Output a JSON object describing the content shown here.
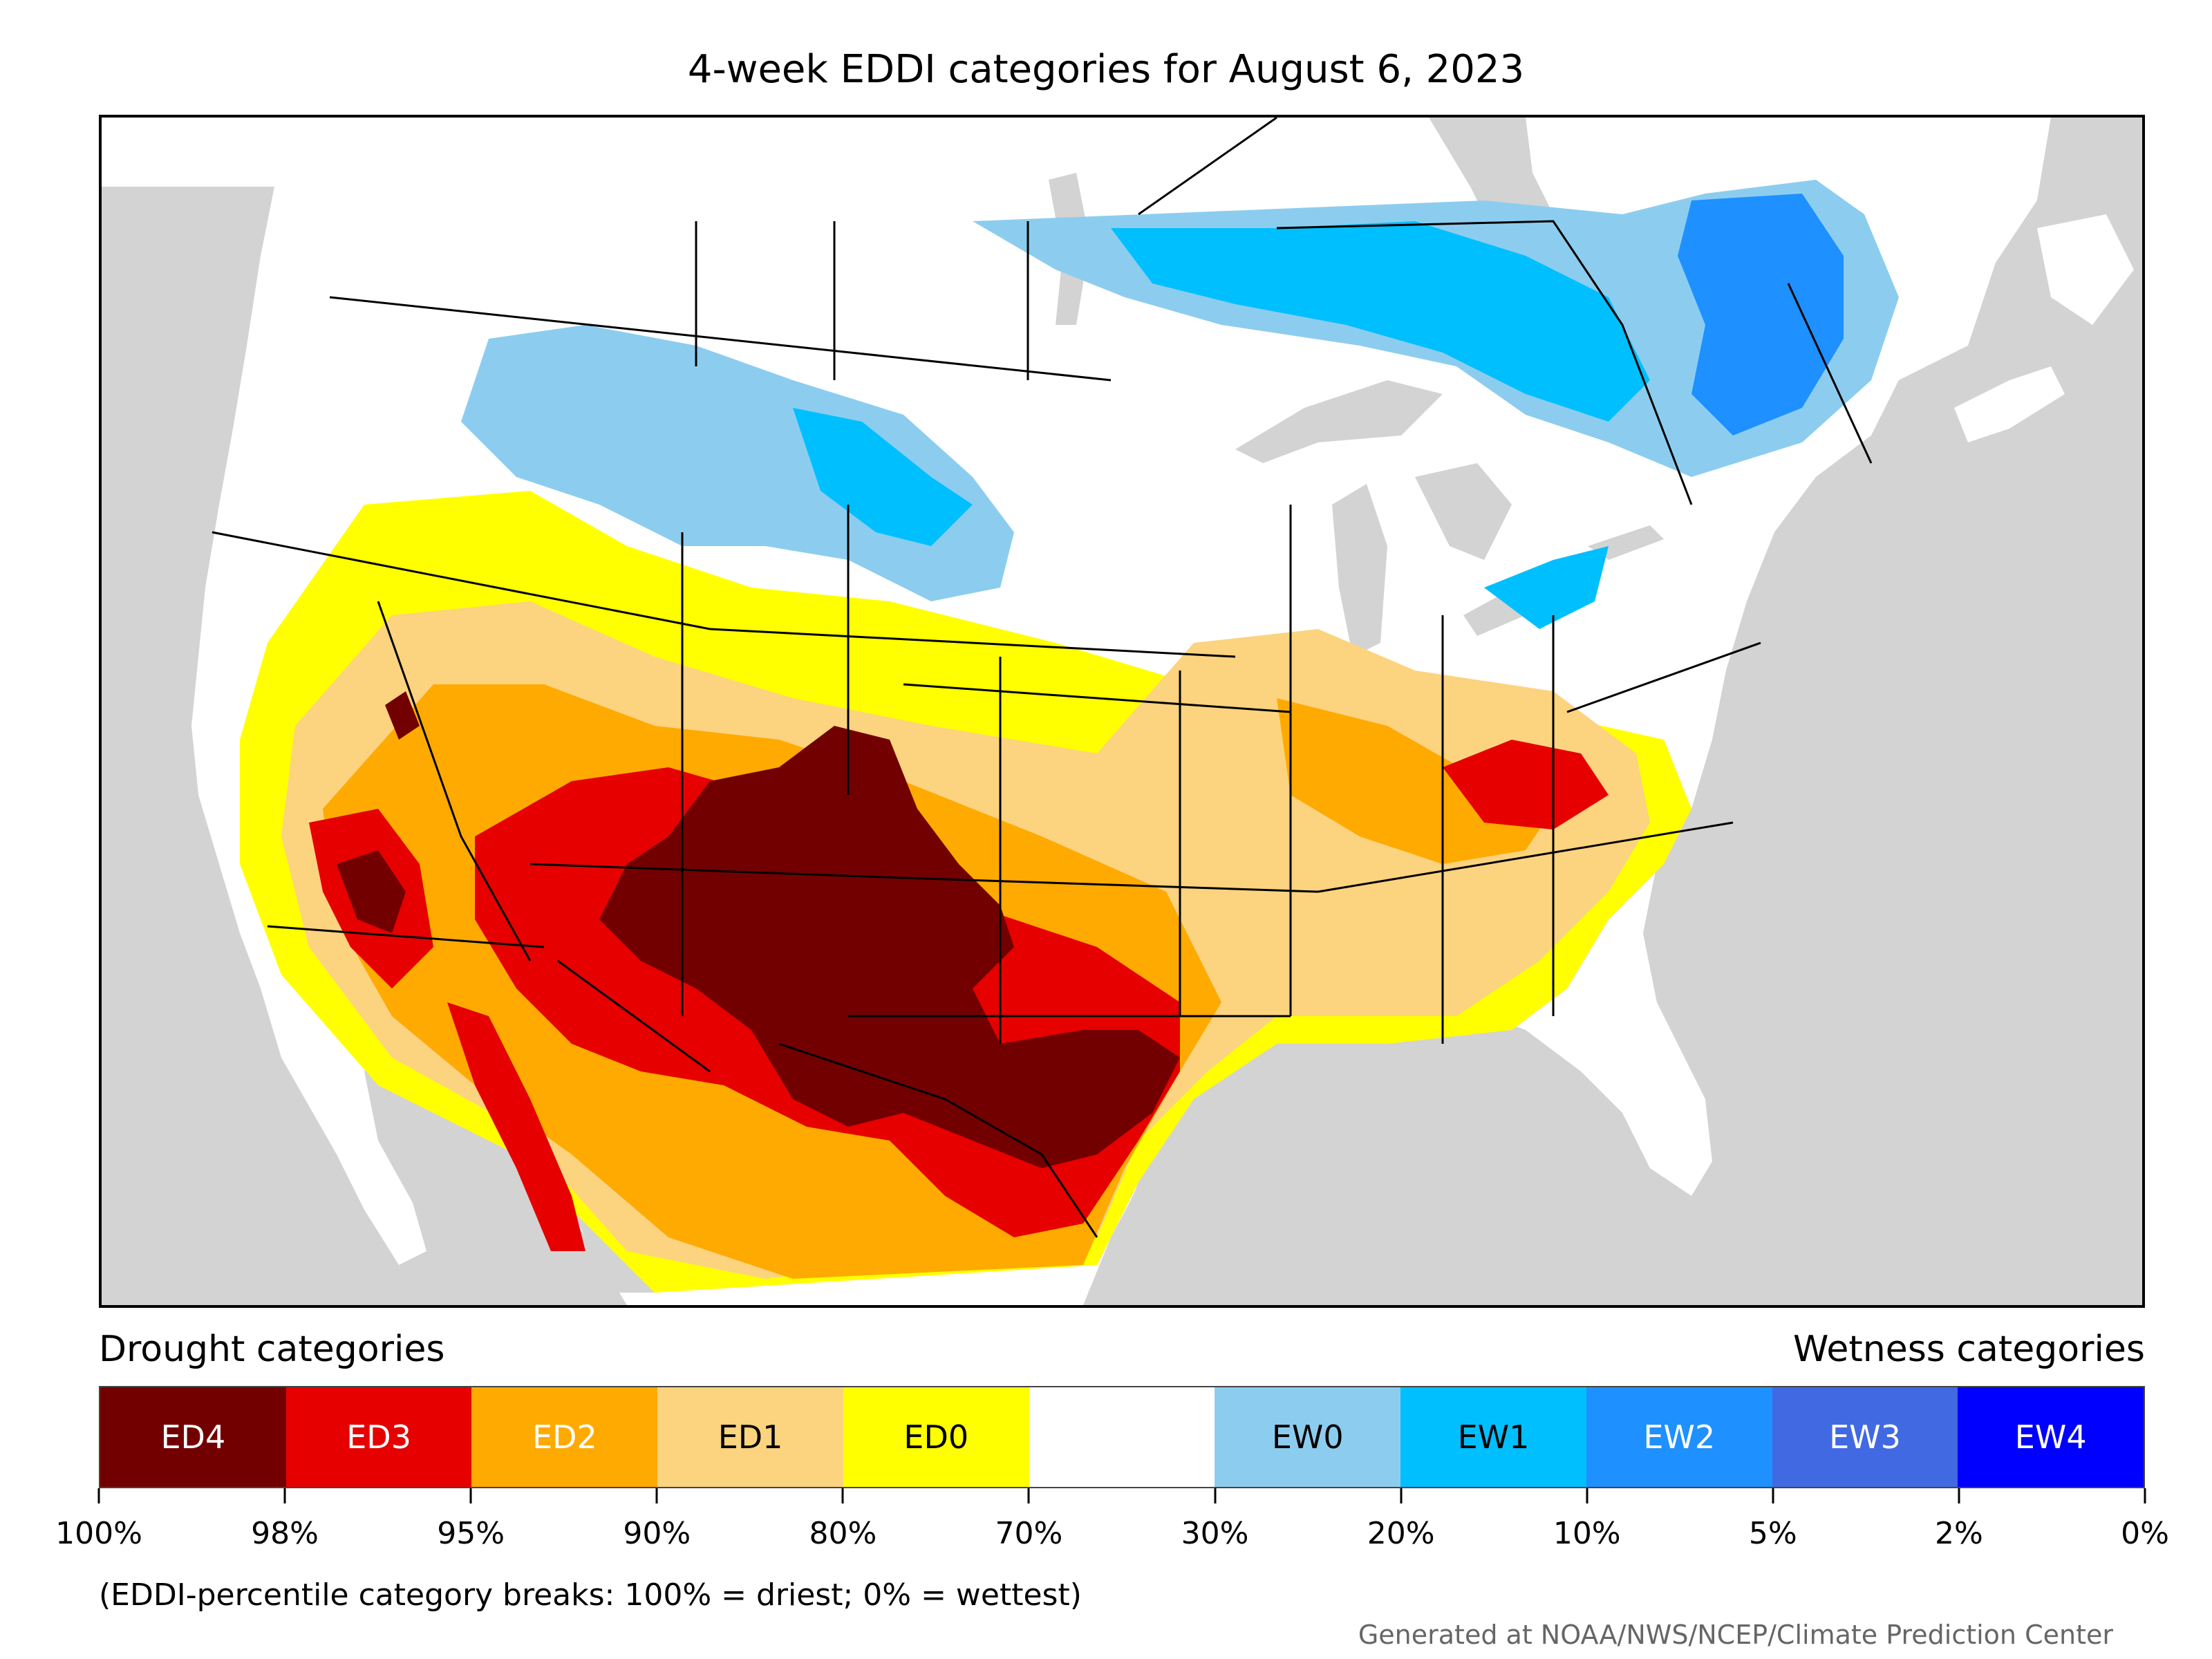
{
  "title": "4-week EDDI categories for August 6, 2023",
  "legend": {
    "drought_heading": "Drought categories",
    "wetness_heading": "Wetness categories",
    "categories": [
      {
        "label": "ED4",
        "color": "#730000",
        "text_color": "#ffffff"
      },
      {
        "label": "ED3",
        "color": "#e60000",
        "text_color": "#ffffff"
      },
      {
        "label": "ED2",
        "color": "#ffaa00",
        "text_color": "#ffffff"
      },
      {
        "label": "ED1",
        "color": "#fcd37f",
        "text_color": "#000000"
      },
      {
        "label": "ED0",
        "color": "#ffff00",
        "text_color": "#000000"
      },
      {
        "label": "",
        "color": "#ffffff",
        "text_color": "#000000"
      },
      {
        "label": "EW0",
        "color": "#8ccdef",
        "text_color": "#000000"
      },
      {
        "label": "EW1",
        "color": "#00bfff",
        "text_color": "#000000"
      },
      {
        "label": "EW2",
        "color": "#1e90ff",
        "text_color": "#ffffff"
      },
      {
        "label": "EW3",
        "color": "#4169e1",
        "text_color": "#ffffff"
      },
      {
        "label": "EW4",
        "color": "#0000ff",
        "text_color": "#ffffff"
      }
    ],
    "breaks": [
      "100%",
      "98%",
      "95%",
      "90%",
      "80%",
      "70%",
      "30%",
      "20%",
      "10%",
      "5%",
      "2%",
      "0%"
    ],
    "note": "(EDDI-percentile category breaks: 100% = driest; 0% = wettest)"
  },
  "credit": "Generated at NOAA/NWS/NCEP/Climate Prediction Center",
  "map": {
    "ocean_color": "#d3d3d3",
    "land_color": "#ffffff",
    "regions": [
      {
        "name": "southwest-texas-ed4",
        "category": "ED4"
      },
      {
        "name": "southwest-ed3",
        "category": "ED3"
      },
      {
        "name": "california-ed3",
        "category": "ED3"
      },
      {
        "name": "ohio-valley-ed3",
        "category": "ED3"
      },
      {
        "name": "midwest-ed1",
        "category": "ED1"
      },
      {
        "name": "plains-ed0",
        "category": "ED0"
      },
      {
        "name": "northern-rockies-ew0",
        "category": "EW0"
      },
      {
        "name": "ontario-quebec-ew1",
        "category": "EW1"
      },
      {
        "name": "quebec-ew2",
        "category": "EW2"
      }
    ]
  }
}
